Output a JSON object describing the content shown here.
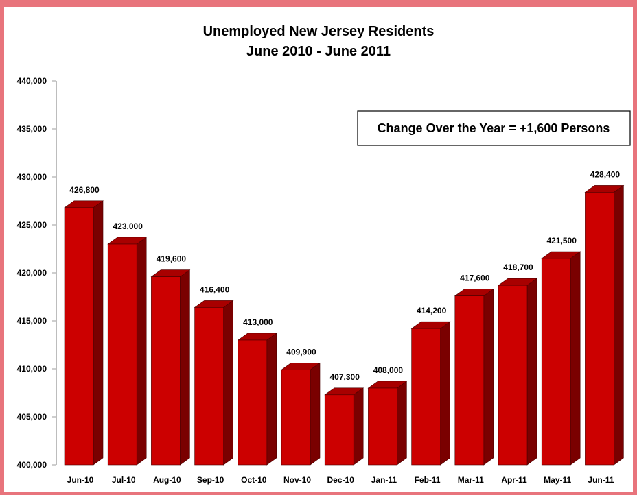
{
  "chart_data": {
    "type": "bar",
    "title": "Unemployed New Jersey Residents",
    "subtitle": "June 2010 - June 2011",
    "xlabel": "",
    "ylabel": "",
    "categories": [
      "Jun-10",
      "Jul-10",
      "Aug-10",
      "Sep-10",
      "Oct-10",
      "Nov-10",
      "Dec-10",
      "Jan-11",
      "Feb-11",
      "Mar-11",
      "Apr-11",
      "May-11",
      "Jun-11"
    ],
    "values": [
      426800,
      423000,
      419600,
      416400,
      413000,
      409900,
      407300,
      408000,
      414200,
      417600,
      418700,
      421500,
      428400
    ],
    "value_labels": [
      "426,800",
      "423,000",
      "419,600",
      "416,400",
      "413,000",
      "409,900",
      "407,300",
      "408,000",
      "414,200",
      "417,600",
      "418,700",
      "421,500",
      "428,400"
    ],
    "ylim": [
      400000,
      440000
    ],
    "yticks": [
      400000,
      405000,
      410000,
      415000,
      420000,
      425000,
      430000,
      435000,
      440000
    ],
    "ytick_labels": [
      "400,000",
      "405,000",
      "410,000",
      "415,000",
      "420,000",
      "425,000",
      "430,000",
      "435,000",
      "440,000"
    ],
    "grid": false,
    "legend": "none",
    "annotation": "Change Over the Year = +1,600 Persons",
    "colors": {
      "bar_front": "#cc0000",
      "bar_top": "#a80000",
      "bar_side": "#7a0000",
      "page_border": "#e8747c"
    }
  }
}
